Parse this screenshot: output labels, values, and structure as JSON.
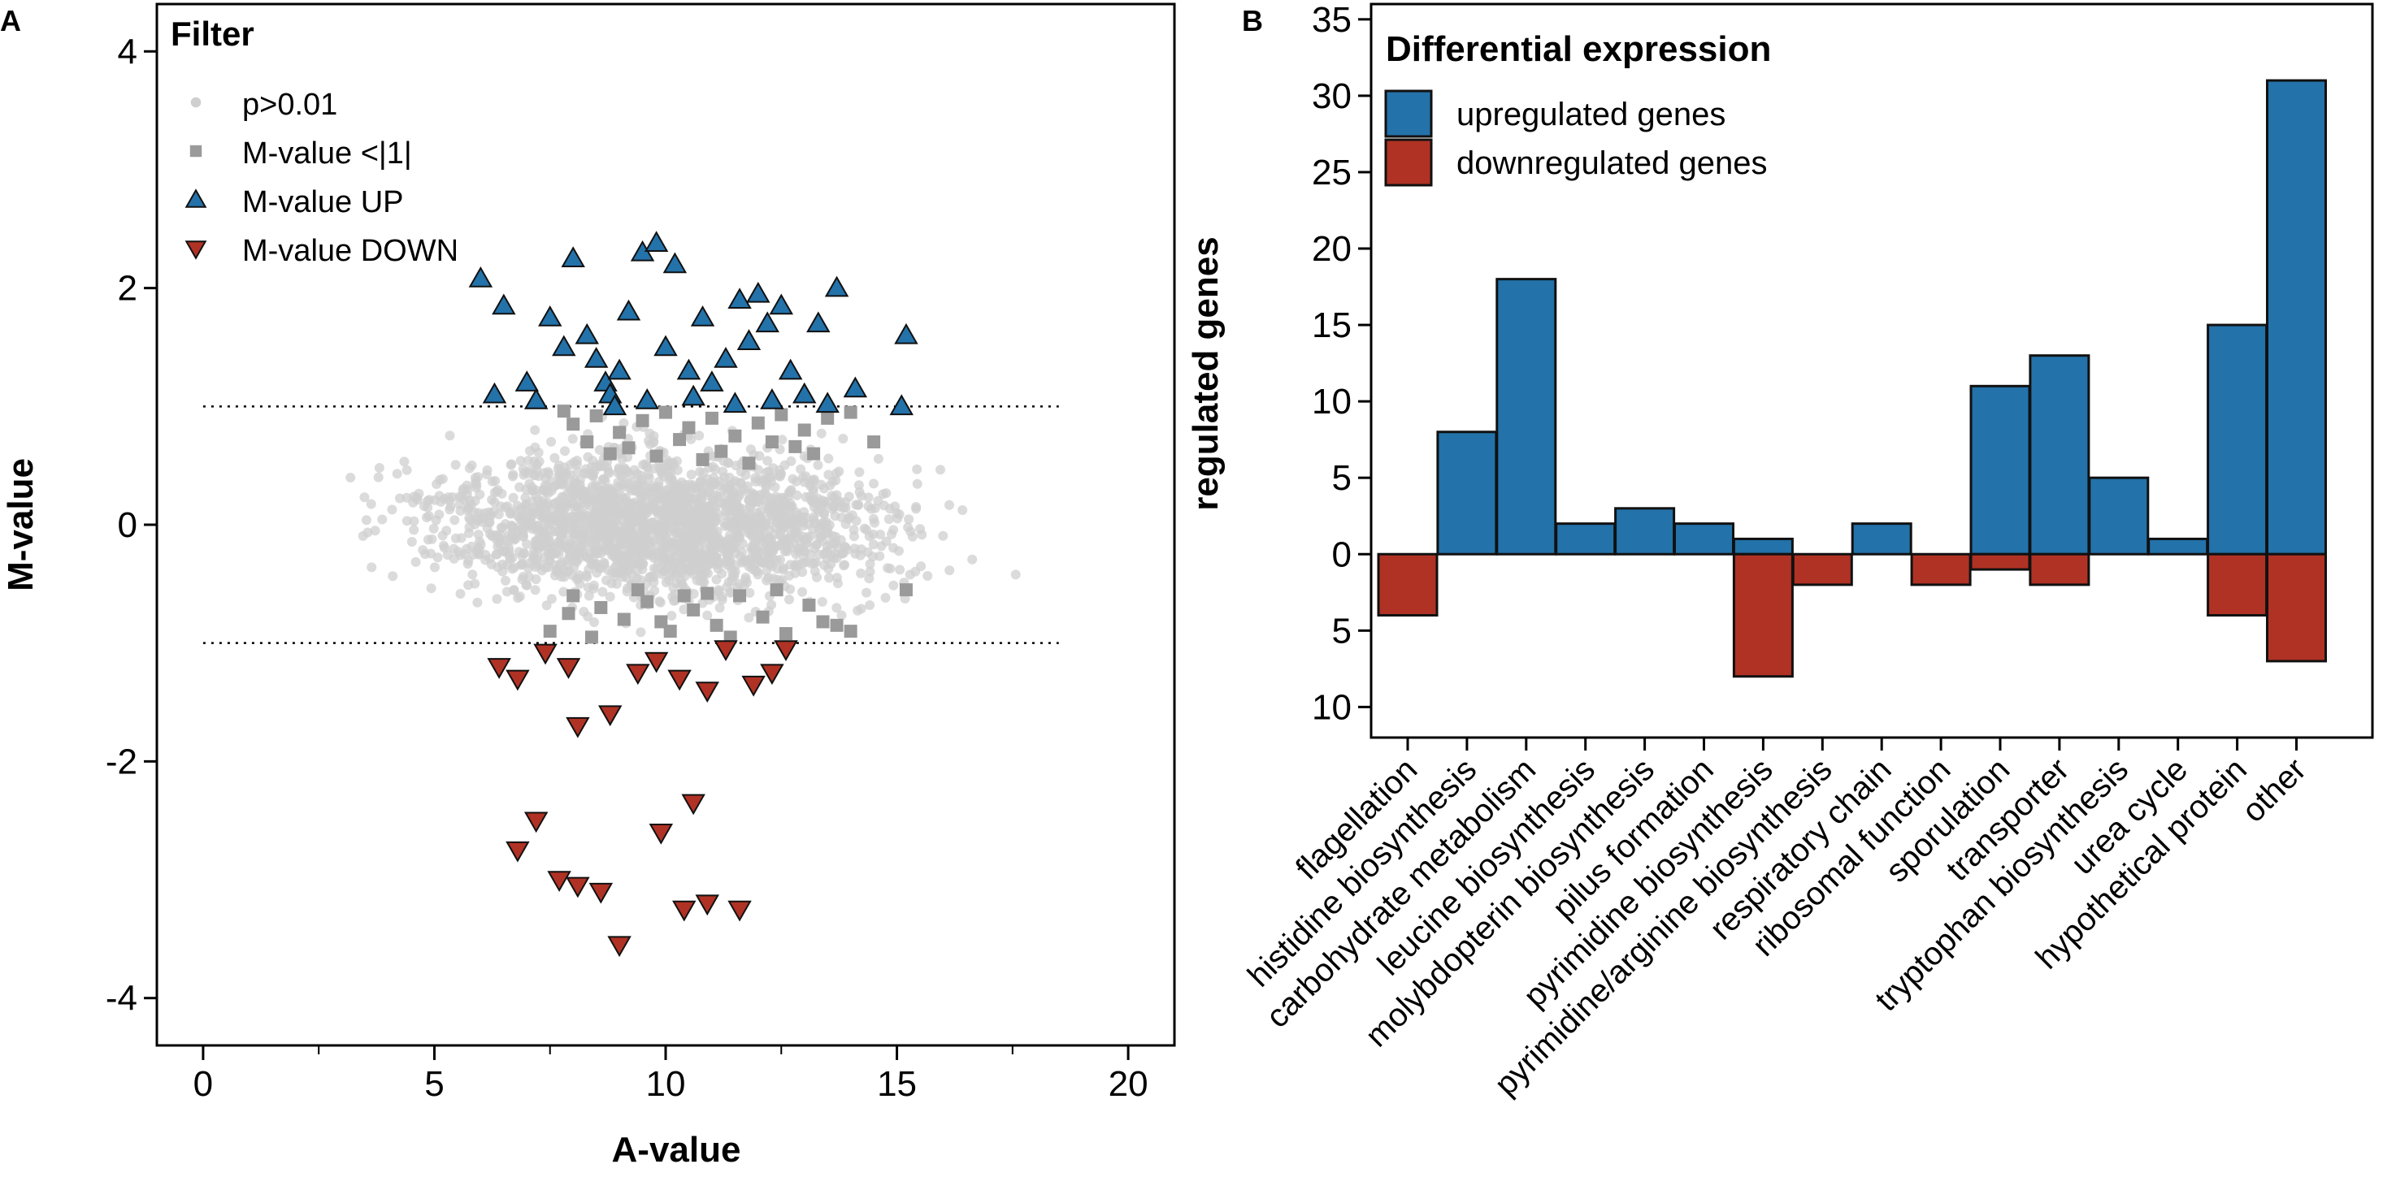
{
  "colors": {
    "up": "#2372aa",
    "down": "#b03224",
    "grey_square": "#9a9a9a",
    "grey_dot": "#cfcfcf",
    "stroke": "#111111"
  },
  "chart_data": [
    {
      "panel": "A",
      "type": "scatter",
      "title": "Filter",
      "xlabel": "A-value",
      "ylabel": "M-value",
      "xlim": [
        -1,
        21
      ],
      "ylim": [
        -4.4,
        4.4
      ],
      "x_ticks": [
        0,
        5,
        10,
        15,
        20
      ],
      "x_minor_ticks": [
        2.5,
        7.5,
        12.5,
        17.5
      ],
      "y_ticks": [
        -4,
        -2,
        0,
        2,
        4
      ],
      "thresholds": [
        1,
        -1
      ],
      "legend": [
        {
          "label": "p>0.01",
          "symbol": "circle"
        },
        {
          "label": "M-value <|1|",
          "symbol": "square"
        },
        {
          "label": "M-value UP",
          "symbol": "triangle-up"
        },
        {
          "label": "M-value DOWN",
          "symbol": "triangle-down"
        }
      ],
      "background_cloud": {
        "series": "p>0.01",
        "n": 2200,
        "x_center": 10,
        "x_sd": 2.4,
        "y_sd": 0.3,
        "x_range": [
          0.1,
          18.4
        ],
        "y_range": [
          -0.95,
          0.95
        ]
      },
      "series": [
        {
          "name": "M-value <|1|",
          "symbol": "square",
          "points": [
            [
              8.0,
              0.85
            ],
            [
              8.5,
              0.92
            ],
            [
              9.0,
              0.78
            ],
            [
              9.5,
              0.88
            ],
            [
              10.0,
              0.95
            ],
            [
              10.5,
              0.82
            ],
            [
              11.0,
              0.9
            ],
            [
              11.5,
              0.75
            ],
            [
              12.0,
              0.86
            ],
            [
              12.5,
              0.93
            ],
            [
              13.0,
              0.8
            ],
            [
              13.5,
              0.9
            ],
            [
              14.0,
              0.95
            ],
            [
              8.3,
              0.7
            ],
            [
              9.2,
              0.65
            ],
            [
              10.3,
              0.72
            ],
            [
              11.2,
              0.62
            ],
            [
              12.3,
              0.7
            ],
            [
              13.2,
              0.6
            ],
            [
              10.8,
              0.55
            ],
            [
              9.8,
              0.58
            ],
            [
              11.8,
              0.52
            ],
            [
              12.8,
              0.66
            ],
            [
              7.8,
              0.96
            ],
            [
              8.8,
              0.6
            ],
            [
              14.5,
              0.7
            ],
            [
              15.2,
              -0.55
            ],
            [
              13.7,
              -0.85
            ],
            [
              8.0,
              -0.6
            ],
            [
              8.6,
              -0.7
            ],
            [
              9.1,
              -0.8
            ],
            [
              9.6,
              -0.65
            ],
            [
              10.1,
              -0.9
            ],
            [
              10.6,
              -0.72
            ],
            [
              11.1,
              -0.85
            ],
            [
              11.6,
              -0.6
            ],
            [
              12.1,
              -0.78
            ],
            [
              12.6,
              -0.92
            ],
            [
              13.1,
              -0.68
            ],
            [
              7.5,
              -0.9
            ],
            [
              7.9,
              -0.75
            ],
            [
              8.4,
              -0.95
            ],
            [
              9.4,
              -0.55
            ],
            [
              10.4,
              -0.6
            ],
            [
              11.4,
              -0.95
            ],
            [
              12.4,
              -0.55
            ],
            [
              13.4,
              -0.82
            ],
            [
              14.0,
              -0.9
            ],
            [
              9.9,
              -0.82
            ],
            [
              10.9,
              -0.58
            ]
          ]
        },
        {
          "name": "M-value UP",
          "symbol": "triangle-up",
          "points": [
            [
              6.0,
              2.08
            ],
            [
              6.5,
              1.85
            ],
            [
              7.0,
              1.2
            ],
            [
              7.5,
              1.75
            ],
            [
              7.8,
              1.5
            ],
            [
              8.0,
              2.25
            ],
            [
              8.3,
              1.6
            ],
            [
              8.5,
              1.4
            ],
            [
              8.7,
              1.2
            ],
            [
              8.8,
              1.1
            ],
            [
              9.0,
              1.3
            ],
            [
              9.2,
              1.8
            ],
            [
              9.5,
              2.3
            ],
            [
              9.8,
              2.38
            ],
            [
              10.0,
              1.5
            ],
            [
              10.2,
              2.2
            ],
            [
              10.5,
              1.3
            ],
            [
              10.8,
              1.75
            ],
            [
              11.0,
              1.2
            ],
            [
              11.3,
              1.4
            ],
            [
              11.6,
              1.9
            ],
            [
              11.8,
              1.55
            ],
            [
              12.0,
              1.95
            ],
            [
              12.2,
              1.7
            ],
            [
              12.5,
              1.85
            ],
            [
              12.7,
              1.3
            ],
            [
              13.0,
              1.1
            ],
            [
              13.3,
              1.7
            ],
            [
              13.7,
              2.0
            ],
            [
              14.1,
              1.15
            ],
            [
              15.1,
              1.0
            ],
            [
              15.2,
              1.6
            ],
            [
              6.3,
              1.1
            ],
            [
              7.2,
              1.05
            ],
            [
              8.9,
              1.0
            ],
            [
              9.6,
              1.05
            ],
            [
              10.6,
              1.08
            ],
            [
              11.5,
              1.02
            ],
            [
              12.3,
              1.05
            ],
            [
              13.5,
              1.02
            ]
          ]
        },
        {
          "name": "M-value DOWN",
          "symbol": "triangle-down",
          "points": [
            [
              6.4,
              -1.2
            ],
            [
              6.8,
              -1.3
            ],
            [
              7.4,
              -1.08
            ],
            [
              7.9,
              -1.2
            ],
            [
              8.1,
              -1.7
            ],
            [
              8.8,
              -1.6
            ],
            [
              9.4,
              -1.25
            ],
            [
              9.8,
              -1.15
            ],
            [
              10.3,
              -1.3
            ],
            [
              10.9,
              -1.4
            ],
            [
              11.3,
              -1.05
            ],
            [
              11.9,
              -1.35
            ],
            [
              12.3,
              -1.25
            ],
            [
              12.6,
              -1.05
            ],
            [
              7.2,
              -2.5
            ],
            [
              6.8,
              -2.75
            ],
            [
              7.7,
              -3.0
            ],
            [
              8.1,
              -3.05
            ],
            [
              8.6,
              -3.1
            ],
            [
              9.9,
              -2.6
            ],
            [
              10.4,
              -3.25
            ],
            [
              10.6,
              -2.35
            ],
            [
              10.9,
              -3.2
            ],
            [
              11.6,
              -3.25
            ],
            [
              9.0,
              -3.55
            ]
          ]
        }
      ]
    },
    {
      "panel": "B",
      "type": "bar",
      "title": "Differential expression",
      "xlabel": "",
      "ylabel": "regulated genes",
      "ylim": [
        -12,
        36
      ],
      "y_ticks": [
        -10,
        -5,
        0,
        5,
        10,
        15,
        20,
        25,
        30,
        35
      ],
      "y_tick_labels": [
        "10",
        "5",
        "0",
        "5",
        "10",
        "15",
        "20",
        "25",
        "30",
        "35"
      ],
      "categories": [
        "flagellation",
        "histidine biosynthesis",
        "carbohydrate metabolism",
        "leucine biosynthesis",
        "molybdopterin biosynthesis",
        "pilus formation",
        "pyrimidine biosynthesis",
        "pyrimidine/arginine biosynthesis",
        "respiratory chain",
        "ribosomal function",
        "sporulation",
        "transporter",
        "tryptophan biosynthesis",
        "urea cycle",
        "hypothetical protein",
        "other"
      ],
      "series": [
        {
          "name": "upregulated genes",
          "values": [
            0,
            8,
            18,
            2,
            3,
            2,
            1,
            0,
            2,
            0,
            11,
            13,
            5,
            1,
            15,
            31
          ]
        },
        {
          "name": "downregulated genes",
          "values": [
            4,
            0,
            0,
            0,
            0,
            0,
            8,
            2,
            0,
            2,
            1,
            2,
            0,
            0,
            4,
            7
          ]
        }
      ]
    }
  ],
  "panel_labels": [
    "A",
    "B"
  ]
}
